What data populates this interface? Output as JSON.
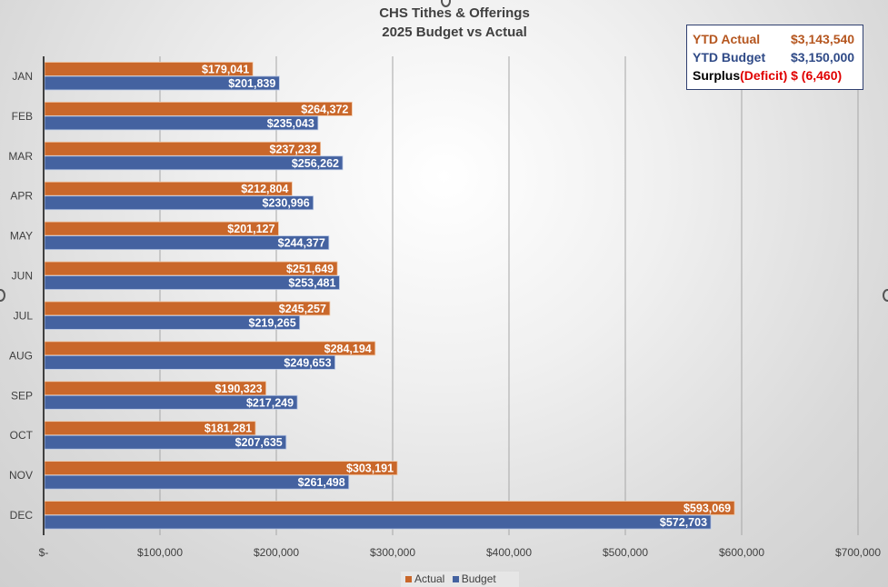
{
  "chart_data": {
    "type": "bar",
    "orientation": "horizontal",
    "title": "CHS Tithes & Offerings",
    "subtitle": "2025 Budget vs Actual",
    "categories": [
      "JAN",
      "FEB",
      "MAR",
      "APR",
      "MAY",
      "JUN",
      "JUL",
      "AUG",
      "SEP",
      "OCT",
      "NOV",
      "DEC"
    ],
    "series": [
      {
        "name": "Actual",
        "color": "#c9672a",
        "values": [
          179041,
          264372,
          237232,
          212804,
          201127,
          251649,
          245257,
          284194,
          190323,
          181281,
          303191,
          593069
        ],
        "labels": [
          "$179,041",
          "$264,372",
          "$237,232",
          "$212,804",
          "$201,127",
          "$251,649",
          "$245,257",
          "$284,194",
          "$190,323",
          "$181,281",
          "$303,191",
          "$593,069"
        ]
      },
      {
        "name": "Budget",
        "color": "#4462a0",
        "values": [
          201839,
          235043,
          256262,
          230996,
          244377,
          253481,
          219265,
          249653,
          217249,
          207635,
          261498,
          572703
        ],
        "labels": [
          "$201,839",
          "$235,043",
          "$256,262",
          "$230,996",
          "$244,377",
          "$253,481",
          "$219,265",
          "$249,653",
          "$217,249",
          "$207,635",
          "$261,498",
          "$572,703"
        ]
      }
    ],
    "xlim": [
      0,
      700000
    ],
    "xticks": [
      0,
      100000,
      200000,
      300000,
      400000,
      500000,
      600000,
      700000
    ],
    "xtick_labels": [
      "$-",
      "$100,000",
      "$200,000",
      "$300,000",
      "$400,000",
      "$500,000",
      "$600,000",
      "$700,000"
    ],
    "grid": true,
    "legend_position": "bottom"
  },
  "summary": {
    "ytd_actual_label": "YTD Actual",
    "ytd_actual_value": "$3,143,540",
    "ytd_budget_label": "YTD Budget",
    "ytd_budget_value": "$3,150,000",
    "surplus_label": "Surplus",
    "deficit_label": "(Deficit) $ (6,460)",
    "colors": {
      "actual": "#b5561f",
      "budget": "#2f4a87",
      "deficit": "#e00000",
      "surplus": "#000000"
    }
  }
}
